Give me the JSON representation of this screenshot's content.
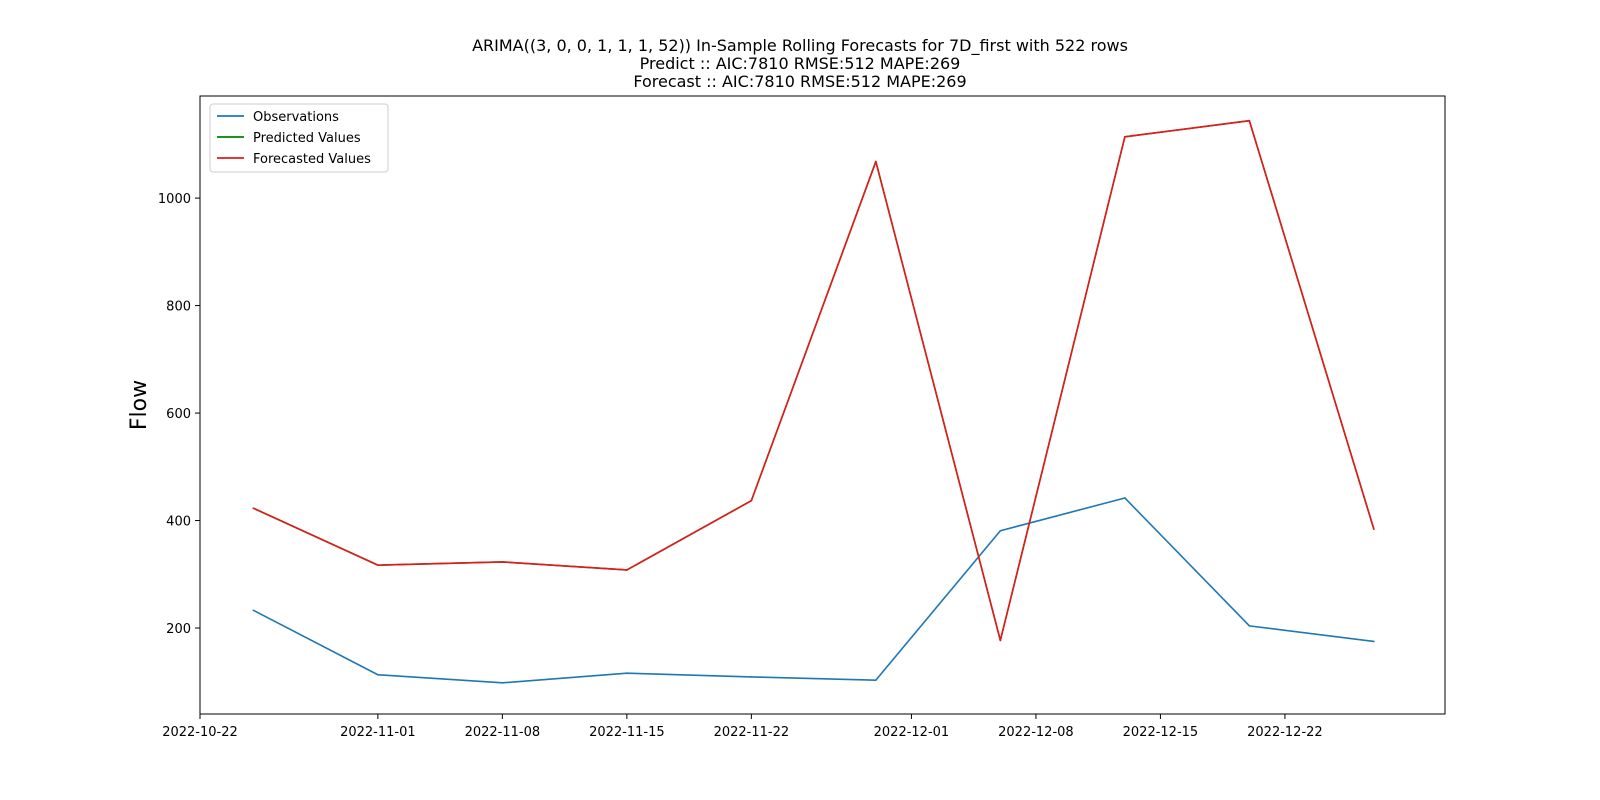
{
  "chart_data": {
    "type": "line",
    "title_lines": [
      "ARIMA((3, 0, 0, 1, 1, 1, 52)) In-Sample Rolling Forecasts for 7D_first with 522 rows",
      "Predict :: AIC:7810 RMSE:512 MAPE:269",
      "Forecast :: AIC:7810 RMSE:512 MAPE:269"
    ],
    "xlabel": "",
    "ylabel": "Flow",
    "x_ticks": [
      "2022-10-22",
      "2022-11-01",
      "2022-11-08",
      "2022-11-15",
      "2022-11-22",
      "2022-12-01",
      "2022-12-08",
      "2022-12-15",
      "2022-12-22"
    ],
    "y_ticks": [
      200,
      400,
      600,
      800,
      1000
    ],
    "xlim": [
      "2022-10-22",
      "2022-12-31"
    ],
    "ylim": [
      40,
      1190
    ],
    "grid": false,
    "legend_position": "upper-left",
    "x": [
      "2022-10-25",
      "2022-11-01",
      "2022-11-08",
      "2022-11-15",
      "2022-11-22",
      "2022-11-29",
      "2022-12-06",
      "2022-12-13",
      "2022-12-20",
      "2022-12-27"
    ],
    "series": [
      {
        "name": "Observations",
        "color": "#1f77b4",
        "values": [
          233,
          113,
          98,
          116,
          109,
          103,
          381,
          442,
          204,
          175
        ]
      },
      {
        "name": "Predicted Values",
        "color": "#008000",
        "values": [
          423,
          317,
          323,
          308,
          437,
          1068,
          177,
          1114,
          1144,
          384
        ]
      },
      {
        "name": "Forecasted Values",
        "color": "#e31a1c",
        "values": [
          423,
          317,
          323,
          308,
          437,
          1068,
          177,
          1114,
          1144,
          384
        ]
      }
    ]
  }
}
